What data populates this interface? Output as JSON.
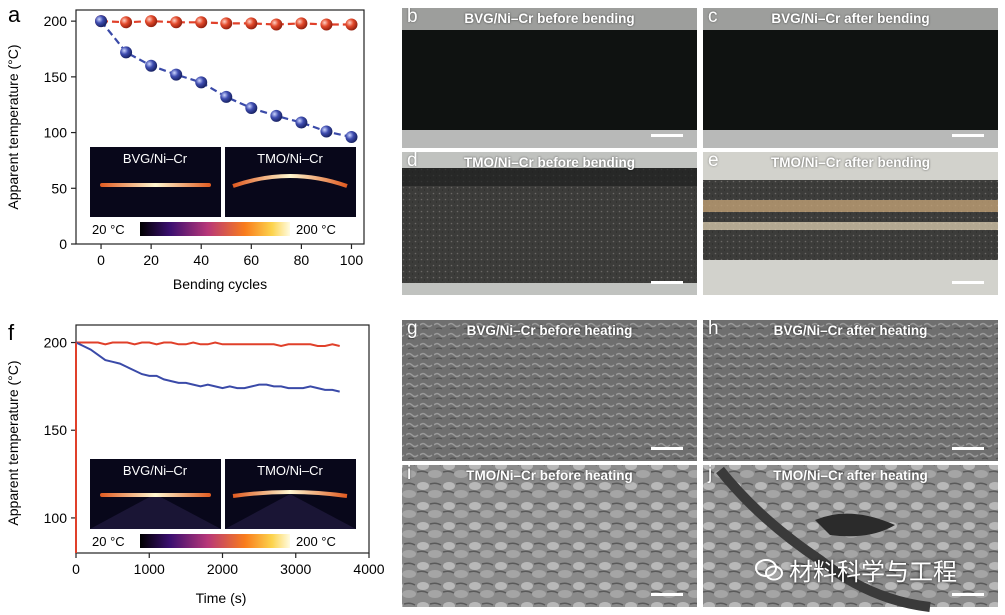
{
  "charts": [
    {
      "letter": "a",
      "xlabel": "Bending cycles",
      "ylabel": "Apparent temperature (°C)",
      "xlim": [
        -10,
        105
      ],
      "ylim": [
        0,
        210
      ],
      "xticks": [
        "0",
        "20",
        "40",
        "60",
        "80",
        "100"
      ],
      "yticks": [
        "0",
        "50",
        "100",
        "150",
        "200"
      ],
      "colorbar": {
        "min_label": "20 °C",
        "max_label": "200 °C"
      },
      "insets": [
        "BVG/Ni–Cr",
        "TMO/Ni–Cr"
      ],
      "chart_data": {
        "type": "line",
        "x": [
          0,
          10,
          20,
          30,
          40,
          50,
          60,
          70,
          80,
          90,
          100
        ],
        "series": [
          {
            "color": "#e0402a",
            "values": [
              200,
              199,
              200,
              199,
              199,
              198,
              198,
              197,
              198,
              197,
              197
            ]
          },
          {
            "color": "#3a4aa8",
            "values": [
              200,
              172,
              160,
              152,
              145,
              132,
              122,
              115,
              109,
              101,
              96
            ]
          }
        ]
      }
    },
    {
      "letter": "f",
      "xlabel": "Time (s)",
      "ylabel": "Apparent temperature (°C)",
      "xlim": [
        0,
        4000
      ],
      "ylim": [
        80,
        210
      ],
      "xticks": [
        "0",
        "1000",
        "2000",
        "3000",
        "4000"
      ],
      "yticks": [
        "100",
        "150",
        "200"
      ],
      "colorbar": {
        "min_label": "20 °C",
        "max_label": "200 °C"
      },
      "insets": [
        "BVG/Ni–Cr",
        "TMO/Ni–Cr"
      ],
      "chart_data": {
        "type": "line",
        "x": [
          0,
          100,
          200,
          300,
          400,
          500,
          600,
          700,
          800,
          900,
          1000,
          1100,
          1200,
          1300,
          1400,
          1500,
          1600,
          1700,
          1800,
          1900,
          2000,
          2100,
          2200,
          2300,
          2400,
          2500,
          2600,
          2700,
          2800,
          2900,
          3000,
          3100,
          3200,
          3300,
          3400,
          3500,
          3600
        ],
        "series": [
          {
            "color": "#e0402a",
            "values": [
              200,
              200,
              200,
              200,
              199,
              200,
              200,
              200,
              199,
              200,
              200,
              199,
              200,
              200,
              199,
              199,
              200,
              199,
              199,
              200,
              199,
              199,
              199,
              199,
              199,
              199,
              199,
              199,
              198,
              199,
              199,
              199,
              199,
              198,
              198,
              199,
              198
            ]
          },
          {
            "color": "#3a4aa8",
            "values": [
              200,
              198,
              196,
              193,
              190,
              189,
              188,
              186,
              184,
              182,
              181,
              181,
              179,
              178,
              177,
              177,
              176,
              175,
              176,
              175,
              174,
              175,
              174,
              174,
              175,
              176,
              176,
              175,
              175,
              174,
              174,
              174,
              175,
              174,
              173,
              173,
              172
            ]
          }
        ]
      }
    }
  ],
  "images": [
    {
      "letter": "b",
      "title": "BVG/Ni–Cr before bending"
    },
    {
      "letter": "c",
      "title": "BVG/Ni–Cr after bending"
    },
    {
      "letter": "d",
      "title": "TMO/Ni–Cr before bending"
    },
    {
      "letter": "e",
      "title": "TMO/Ni–Cr after bending"
    },
    {
      "letter": "g",
      "title": "BVG/Ni–Cr before heating"
    },
    {
      "letter": "h",
      "title": "BVG/Ni–Cr after heating"
    },
    {
      "letter": "i",
      "title": "TMO/Ni–Cr before heating"
    },
    {
      "letter": "j",
      "title": "TMO/Ni–Cr after heating"
    }
  ],
  "watermark": "材料科学与工程"
}
